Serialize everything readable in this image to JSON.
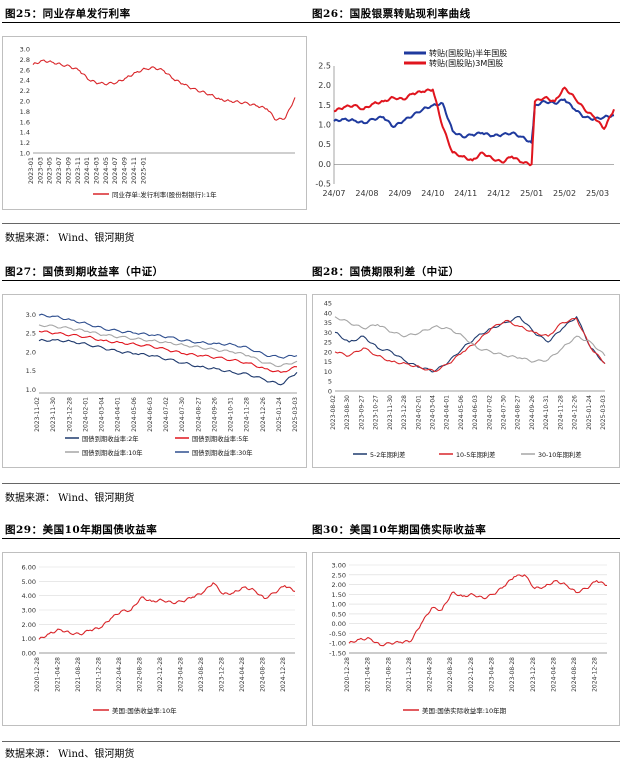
{
  "figures": [
    {
      "title": "图25：同业存单发行利率"
    },
    {
      "title": "图26：国股银票转贴现利率曲线"
    },
    {
      "title": "图27：国债到期收益率（中证）"
    },
    {
      "title": "图28：国债期限利差（中证）"
    },
    {
      "title": "图29：美国10年期国债收益率"
    },
    {
      "title": "图30：美国10年期国债实际收益率"
    }
  ],
  "sources": [
    {
      "text": "数据来源：  Wind、银河期货"
    },
    {
      "text": "数据来源：  Wind、银河期货"
    },
    {
      "text": "数据来源：  Wind、银河期货"
    }
  ],
  "chart_data": [
    {
      "type": "line",
      "ylim": [
        1.0,
        3.0
      ],
      "yticks": [
        "3.0",
        "2.8",
        "2.6",
        "2.4",
        "2.2",
        "2.0",
        "1.8",
        "1.6",
        "1.4",
        "1.2",
        "1.0"
      ],
      "xticks": [
        "2023-01",
        "2023-03",
        "2023-05",
        "2023-07",
        "2023-09",
        "2023-11",
        "2024-01",
        "2024-03",
        "2024-05",
        "2024-07",
        "2024-09",
        "2024-11",
        "2025-01"
      ],
      "series": [
        {
          "name": "同业存单:发行利率(股份制银行):1年",
          "color": "#d9262a",
          "x": [
            0,
            1,
            2,
            3,
            4,
            5,
            6,
            7,
            8,
            9,
            10,
            11,
            12,
            13,
            14,
            15,
            16,
            17,
            18,
            19,
            20,
            21,
            22,
            23,
            24,
            25,
            26,
            27,
            28
          ],
          "values": [
            2.7,
            2.78,
            2.75,
            2.7,
            2.66,
            2.58,
            2.4,
            2.34,
            2.33,
            2.36,
            2.45,
            2.55,
            2.62,
            2.64,
            2.58,
            2.42,
            2.33,
            2.24,
            2.18,
            2.12,
            2.03,
            2.0,
            1.98,
            1.95,
            1.9,
            1.85,
            1.63,
            1.68,
            2.07
          ]
        }
      ]
    },
    {
      "type": "line",
      "ylim": [
        -0.5,
        2.5
      ],
      "yticks": [
        "2.5",
        "2.0",
        "1.5",
        "1.0",
        "0.5",
        "0.0",
        "-0.5"
      ],
      "xticks": [
        "24/07",
        "24/08",
        "24/09",
        "24/10",
        "24/11",
        "24/12",
        "25/01",
        "25/02",
        "25/03"
      ],
      "series": [
        {
          "name": "转贴(国股贴)半年国股",
          "color": "#1f3a9e",
          "x": [
            0,
            0.3,
            0.6,
            0.9,
            1.2,
            1.5,
            1.8,
            2.1,
            2.4,
            2.7,
            3.0,
            3.3,
            3.6,
            3.9,
            4.2,
            4.5,
            4.8,
            5.1,
            5.4,
            5.7,
            6.0,
            6.1,
            6.4,
            6.7,
            7.0,
            7.3,
            7.6,
            7.9,
            8.2,
            8.5
          ],
          "values": [
            1.1,
            1.15,
            1.12,
            1.05,
            1.15,
            1.2,
            0.95,
            1.1,
            1.25,
            1.4,
            1.5,
            1.55,
            0.85,
            0.7,
            0.75,
            0.8,
            0.72,
            0.75,
            0.8,
            0.7,
            0.55,
            1.5,
            1.6,
            1.55,
            1.65,
            1.4,
            1.2,
            1.15,
            1.2,
            1.25
          ]
        },
        {
          "name": "转贴(国股贴)3M国股",
          "color": "#e0151e",
          "x": [
            0,
            0.3,
            0.6,
            0.9,
            1.2,
            1.5,
            1.8,
            2.1,
            2.4,
            2.7,
            3.0,
            3.3,
            3.6,
            3.9,
            4.2,
            4.5,
            4.8,
            5.1,
            5.4,
            5.7,
            6.0,
            6.1,
            6.4,
            6.7,
            7.0,
            7.3,
            7.6,
            7.9,
            8.2,
            8.5
          ],
          "values": [
            1.35,
            1.45,
            1.5,
            1.4,
            1.55,
            1.6,
            1.7,
            1.65,
            1.8,
            1.85,
            1.9,
            0.95,
            0.3,
            0.2,
            0.1,
            0.3,
            0.15,
            0.05,
            0.2,
            0.05,
            0.0,
            1.6,
            1.7,
            1.6,
            1.95,
            1.7,
            1.4,
            1.2,
            0.9,
            1.4
          ]
        }
      ]
    },
    {
      "type": "line",
      "ylim": [
        0.9,
        3.2
      ],
      "yticks": [
        "3.0",
        "2.5",
        "2.0",
        "1.5",
        "1.0"
      ],
      "xticks": [
        "2023-11-02",
        "2023-11-30",
        "2023-12-28",
        "2024-02-01",
        "2024-03-04",
        "2024-04-01",
        "2024-05-06",
        "2024-06-03",
        "2024-07-02",
        "2024-07-30",
        "2024-08-27",
        "2024-09-26",
        "2024-10-31",
        "2024-11-28",
        "2024-12-26",
        "2025-01-24",
        "2025-03-03"
      ],
      "series": [
        {
          "name": "国债到期收益率:2年",
          "color": "#1f3a6e",
          "x": [
            0,
            1,
            2,
            3,
            4,
            5,
            6,
            7,
            8,
            9,
            10,
            11,
            12,
            13,
            14,
            15,
            16
          ],
          "values": [
            2.3,
            2.32,
            2.28,
            2.2,
            2.1,
            2.0,
            1.95,
            1.9,
            1.8,
            1.7,
            1.6,
            1.55,
            1.45,
            1.4,
            1.25,
            1.12,
            1.45
          ]
        },
        {
          "name": "国债到期收益率:5年",
          "color": "#e0151e",
          "x": [
            0,
            1,
            2,
            3,
            4,
            5,
            6,
            7,
            8,
            9,
            10,
            11,
            12,
            13,
            14,
            15,
            16
          ],
          "values": [
            2.55,
            2.5,
            2.45,
            2.4,
            2.3,
            2.25,
            2.2,
            2.15,
            2.05,
            1.95,
            1.9,
            1.85,
            1.78,
            1.7,
            1.55,
            1.45,
            1.6
          ]
        },
        {
          "name": "国债到期收益率:10年",
          "color": "#a6a6a6",
          "x": [
            0,
            1,
            2,
            3,
            4,
            5,
            6,
            7,
            8,
            9,
            10,
            11,
            12,
            13,
            14,
            15,
            16
          ],
          "values": [
            2.72,
            2.68,
            2.62,
            2.55,
            2.45,
            2.4,
            2.35,
            2.3,
            2.25,
            2.18,
            2.12,
            2.05,
            2.0,
            1.9,
            1.7,
            1.62,
            1.75
          ]
        },
        {
          "name": "国债到期收益率:30年",
          "color": "#2f4f8f",
          "x": [
            0,
            1,
            2,
            3,
            4,
            5,
            6,
            7,
            8,
            9,
            10,
            11,
            12,
            13,
            14,
            15,
            16
          ],
          "values": [
            2.98,
            2.95,
            2.85,
            2.75,
            2.62,
            2.55,
            2.5,
            2.45,
            2.4,
            2.3,
            2.25,
            2.22,
            2.2,
            2.1,
            1.92,
            1.85,
            1.9
          ]
        }
      ]
    },
    {
      "type": "line",
      "ylim": [
        0,
        45
      ],
      "yticks": [
        "45",
        "40",
        "35",
        "30",
        "25",
        "20",
        "15",
        "10",
        "5",
        "0"
      ],
      "xticks": [
        "2023-08-02",
        "2023-08-30",
        "2023-09-27",
        "2023-10-27",
        "2023-11-30",
        "2023-12-28",
        "2024-02-01",
        "2024-03-04",
        "2024-04-01",
        "2024-05-06",
        "2024-06-03",
        "2024-07-02",
        "2024-07-30",
        "2024-08-27",
        "2024-09-26",
        "2024-10-31",
        "2024-11-28",
        "2024-12-26",
        "2025-01-24",
        "2025-03-03"
      ],
      "series": [
        {
          "name": "5-2年期利差",
          "color": "#1f3a6e",
          "x": [
            0,
            1,
            2,
            3,
            4,
            5,
            6,
            7,
            8,
            9,
            10,
            11,
            12,
            13,
            14,
            15,
            16,
            17,
            18,
            19
          ],
          "values": [
            30,
            25,
            28,
            22,
            20,
            15,
            12,
            10,
            15,
            22,
            28,
            32,
            35,
            38,
            30,
            25,
            32,
            38,
            22,
            14
          ]
        },
        {
          "name": "10-5年期利差",
          "color": "#d9262a",
          "x": [
            0,
            1,
            2,
            3,
            4,
            5,
            6,
            7,
            8,
            9,
            10,
            11,
            12,
            13,
            14,
            15,
            16,
            17,
            18,
            19
          ],
          "values": [
            20,
            18,
            22,
            18,
            15,
            14,
            12,
            10,
            14,
            20,
            25,
            32,
            36,
            33,
            30,
            28,
            35,
            37,
            22,
            14
          ]
        },
        {
          "name": "30-10年期利差",
          "color": "#a6a6a6",
          "x": [
            0,
            1,
            2,
            3,
            4,
            5,
            6,
            7,
            8,
            9,
            10,
            11,
            12,
            13,
            14,
            15,
            16,
            17,
            18,
            19
          ],
          "values": [
            38,
            35,
            32,
            34,
            30,
            28,
            30,
            33,
            32,
            28,
            22,
            20,
            18,
            17,
            15,
            16,
            22,
            28,
            25,
            18
          ]
        }
      ]
    },
    {
      "type": "line",
      "ylim": [
        0,
        6
      ],
      "yticks": [
        "6.00",
        "5.00",
        "4.00",
        "3.00",
        "2.00",
        "1.00",
        "0.00"
      ],
      "xticks": [
        "2020-12-28",
        "2021-04-28",
        "2021-08-28",
        "2021-12-28",
        "2022-04-28",
        "2022-08-28",
        "2022-12-28",
        "2023-04-28",
        "2023-08-28",
        "2023-12-28",
        "2024-04-28",
        "2024-08-28",
        "2024-12-28"
      ],
      "series": [
        {
          "name": "美国:国债收益率:10年",
          "color": "#d9262a",
          "x": [
            0,
            0.5,
            1,
            1.5,
            2,
            2.5,
            3,
            3.5,
            4,
            4.5,
            5,
            5.5,
            6,
            6.5,
            7,
            7.5,
            8,
            8.5,
            9,
            9.5,
            10,
            10.5,
            11,
            11.5,
            12,
            12.5
          ],
          "values": [
            0.95,
            1.35,
            1.65,
            1.4,
            1.3,
            1.6,
            1.75,
            2.4,
            2.9,
            3.0,
            3.9,
            3.6,
            3.7,
            3.5,
            3.6,
            3.9,
            4.2,
            4.9,
            4.1,
            4.2,
            4.6,
            4.4,
            3.8,
            4.2,
            4.7,
            4.3
          ]
        }
      ]
    },
    {
      "type": "line",
      "ylim": [
        -1.5,
        3.0
      ],
      "yticks": [
        "3.00",
        "2.50",
        "2.00",
        "1.50",
        "1.00",
        "0.50",
        "0.00",
        "-0.50",
        "-1.00",
        "-1.50"
      ],
      "xticks": [
        "2020-12-28",
        "2021-04-28",
        "2021-08-28",
        "2021-12-28",
        "2022-04-28",
        "2022-08-28",
        "2022-12-28",
        "2023-04-28",
        "2023-08-28",
        "2023-12-28",
        "2024-04-28",
        "2024-08-28",
        "2024-12-28"
      ],
      "series": [
        {
          "name": "美国:国债实际收益率:10年期",
          "color": "#d9262a",
          "x": [
            0,
            0.5,
            1,
            1.5,
            2,
            2.5,
            3,
            3.5,
            4,
            4.5,
            5,
            5.5,
            6,
            6.5,
            7,
            7.5,
            8,
            8.5,
            9,
            9.5,
            10,
            10.5,
            11,
            11.5,
            12,
            12.5
          ],
          "values": [
            -1.0,
            -0.8,
            -0.75,
            -1.1,
            -1.0,
            -0.95,
            -0.9,
            0.0,
            0.8,
            0.7,
            1.6,
            1.4,
            1.5,
            1.3,
            1.5,
            1.9,
            2.4,
            2.5,
            1.8,
            1.9,
            2.2,
            2.0,
            1.6,
            1.8,
            2.2,
            1.95
          ]
        }
      ]
    }
  ]
}
